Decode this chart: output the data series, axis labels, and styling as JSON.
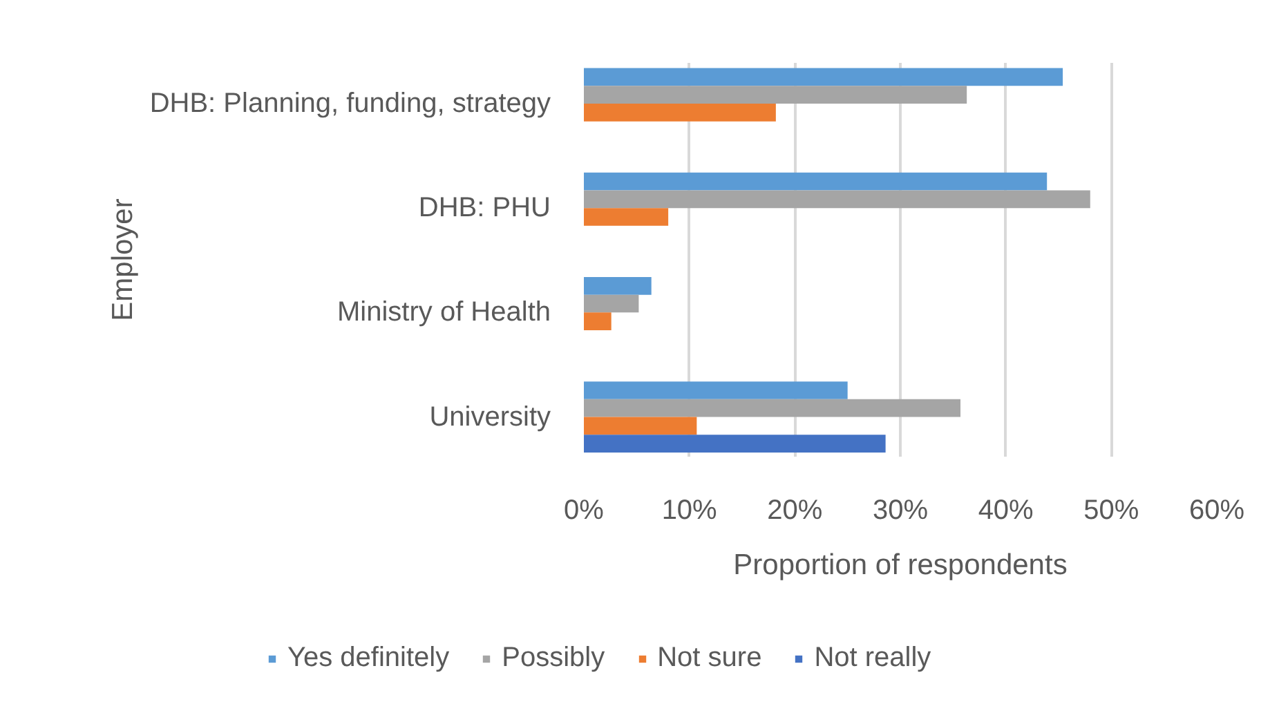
{
  "chart_data": {
    "type": "bar",
    "orientation": "horizontal",
    "ylabel": "Employer",
    "xlabel": "Proportion of respondents",
    "categories": [
      "DHB: Planning, funding, strategy",
      "DHB: PHU",
      "Ministry of Health",
      "University"
    ],
    "series": [
      {
        "name": "Yes definitely",
        "color": "#5b9bd5",
        "values": [
          45.4,
          43.9,
          6.4,
          25.0
        ]
      },
      {
        "name": "Possibly",
        "color": "#a5a5a5",
        "values": [
          36.3,
          48.0,
          5.2,
          35.7
        ]
      },
      {
        "name": "Not sure",
        "color": "#ed7d31",
        "values": [
          18.2,
          8.0,
          2.6,
          10.7
        ]
      },
      {
        "name": "Not really",
        "color": "#4472c4",
        "values": [
          null,
          null,
          null,
          28.6
        ]
      }
    ],
    "xlim": [
      0,
      60
    ],
    "xticks": [
      {
        "value": 0,
        "label": "0%"
      },
      {
        "value": 10,
        "label": "10%"
      },
      {
        "value": 20,
        "label": "20%"
      },
      {
        "value": 30,
        "label": "30%"
      },
      {
        "value": 40,
        "label": "40%"
      },
      {
        "value": 50,
        "label": "50%"
      },
      {
        "value": 60,
        "label": "60%"
      }
    ],
    "grid": "x",
    "legend": "bottom"
  }
}
